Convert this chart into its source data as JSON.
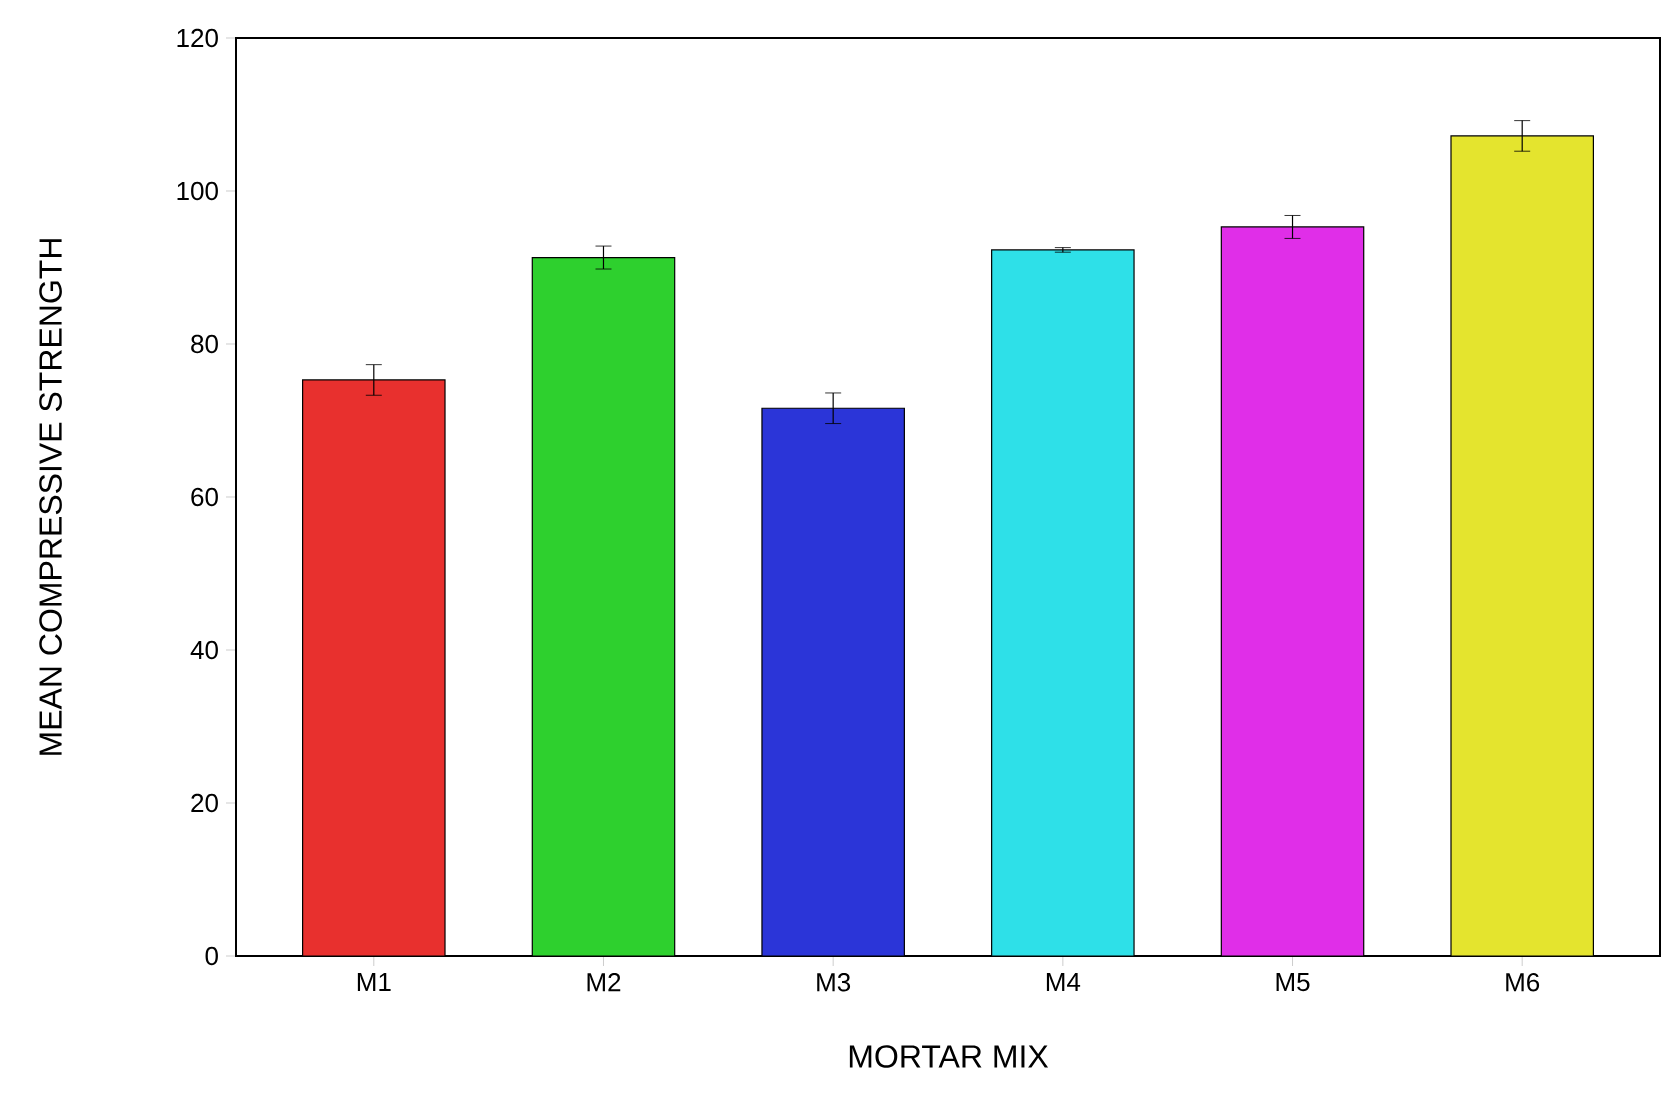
{
  "chart_data": {
    "type": "bar",
    "xlabel": "MORTAR MIX",
    "ylabel": "MEAN COMPRESSIVE STRENGTH",
    "categories": [
      "M1",
      "M2",
      "M3",
      "M4",
      "M5",
      "M6"
    ],
    "values": [
      75.3,
      91.3,
      71.6,
      92.3,
      95.3,
      107.2
    ],
    "errors": [
      2,
      1.5,
      2,
      0.3,
      1.5,
      2
    ],
    "colors": [
      "#e8302e",
      "#2ed02e",
      "#2b35d8",
      "#2ee0e8",
      "#e02ee8",
      "#e4e42e"
    ],
    "ylim": [
      0,
      120
    ],
    "yticks": [
      0,
      20,
      40,
      60,
      80,
      100,
      120
    ],
    "grid": false
  }
}
